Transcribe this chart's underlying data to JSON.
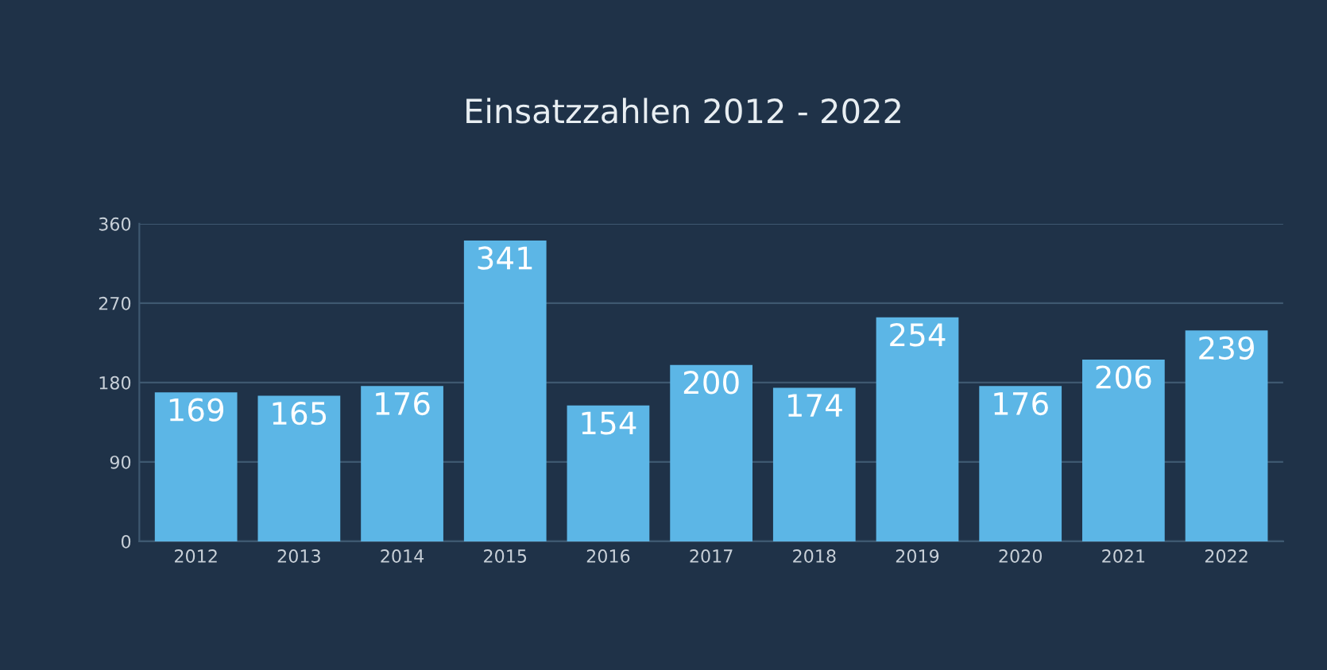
{
  "chart_data": {
    "type": "bar",
    "title": "Einsatzzahlen 2012 - 2022",
    "categories": [
      "2012",
      "2013",
      "2014",
      "2015",
      "2016",
      "2017",
      "2018",
      "2019",
      "2020",
      "2021",
      "2022"
    ],
    "values": [
      169,
      165,
      176,
      341,
      154,
      200,
      174,
      254,
      176,
      206,
      239
    ],
    "color": "#5cb6e6",
    "ylim": [
      0,
      360
    ],
    "yticks": [
      0,
      90,
      180,
      270,
      360
    ],
    "grid": "y",
    "data_labels": true
  }
}
